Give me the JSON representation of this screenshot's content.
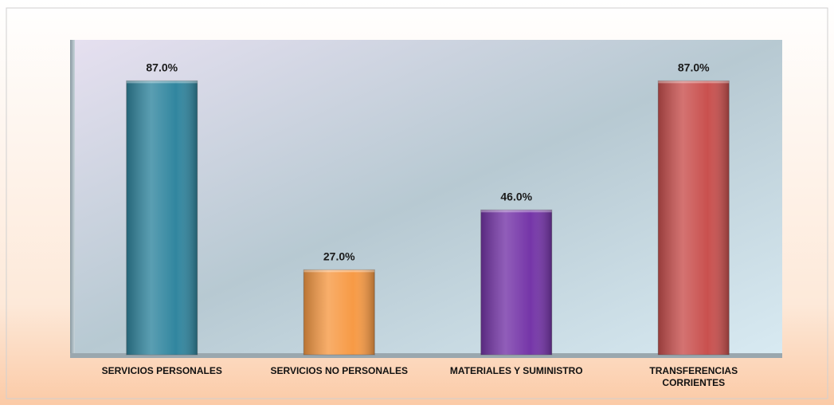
{
  "chart_data": {
    "type": "bar",
    "categories": [
      "SERVICIOS PERSONALES",
      "SERVICIOS NO PERSONALES",
      "MATERIALES Y SUMINISTRO",
      "TRANSFERENCIAS CORRIENTES"
    ],
    "values": [
      87,
      27,
      46,
      87
    ],
    "value_labels": [
      "87.0%",
      "27.0%",
      "46.0%",
      "87.0%"
    ],
    "colors": [
      "#31869f",
      "#f79a45",
      "#7535a8",
      "#c9504e"
    ],
    "ylim": [
      0,
      100
    ]
  }
}
